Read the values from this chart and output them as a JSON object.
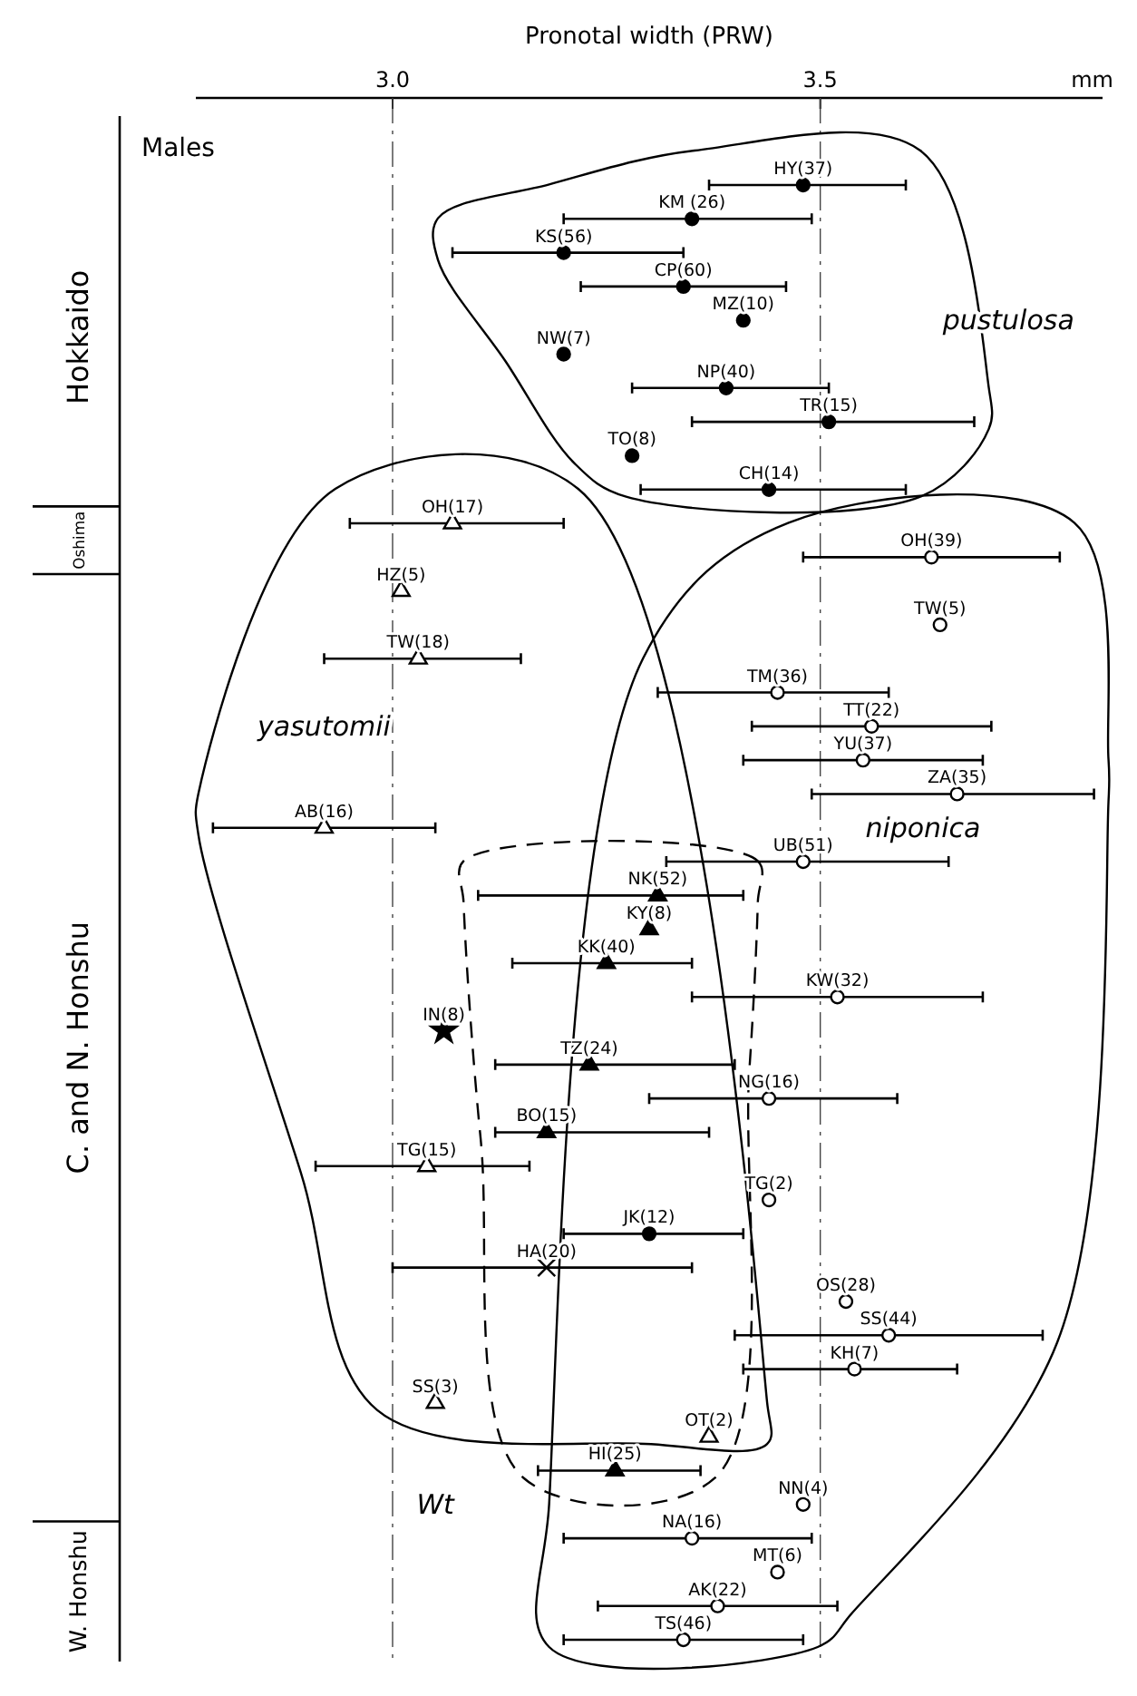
{
  "chart_data": {
    "type": "scatter",
    "orientation": "horizontal",
    "xlabel": "Pronotal width (PRW)",
    "categories": [
      "HY(37)",
      "KM (26)",
      "KS(56)",
      "CP(60)",
      "MZ(10)",
      "NW(7)",
      "NP(40)",
      "TR(15)",
      "TO(8)",
      "CH(14)",
      "OH(17)",
      "OH(39)",
      "HZ(5)",
      "TW(5)",
      "TW(18)",
      "TM(36)",
      "TT(22)",
      "YU(37)",
      "ZA(35)",
      "AB(16)",
      "UB(51)",
      "NK(52)",
      "KY(8)",
      "KK(40)",
      "KW(32)",
      "IN(8)",
      "TZ(24)",
      "NG(16)",
      "BO(15)",
      "TG(15)",
      "TG(2)",
      "JK(12)",
      "HA(20)",
      "OS(28)",
      "SS(44)",
      "KH(7)",
      "SS(3)",
      "OT(2)",
      "HI(25)",
      "NN(4)",
      "NA(16)",
      "MT(6)",
      "AK(22)",
      "TS(46)"
    ],
    "xlim": [
      2.77,
      3.83
    ],
    "xticks": [
      {
        "value": 3,
        "label": "3.0"
      },
      {
        "value": 3.5,
        "label": "3.5"
      }
    ],
    "grid": "x",
    "series": [
      {
        "color": "#000000",
        "marker": "circle",
        "values": [
          3.48,
          3.35,
          3.2,
          3.34,
          3.41,
          3.2,
          3.39,
          3.51,
          3.28,
          3.44,
          null,
          null,
          null,
          null,
          null,
          null,
          null,
          null,
          null,
          null,
          null,
          null,
          null,
          null,
          null,
          null,
          null,
          null,
          null,
          null,
          null,
          null,
          null,
          null,
          null,
          null,
          null,
          null,
          null,
          null,
          null,
          null,
          null,
          null
        ],
        "errors": [
          [
            3.37,
            3.6
          ],
          [
            3.2,
            3.49
          ],
          [
            3.07,
            3.34
          ],
          [
            3.22,
            3.46
          ],
          null,
          null,
          [
            3.28,
            3.51
          ],
          [
            3.35,
            3.68
          ],
          null,
          [
            3.29,
            3.6
          ],
          null,
          null,
          null,
          null,
          null,
          null,
          null,
          null,
          null,
          null,
          null,
          null,
          null,
          null,
          null,
          null,
          null,
          null,
          null,
          null,
          null,
          null,
          null,
          null,
          null,
          null,
          null,
          null,
          null,
          null,
          null,
          null,
          null,
          null
        ]
      },
      {
        "color": "#ffffff",
        "marker": "triangle",
        "values": [
          null,
          null,
          null,
          null,
          null,
          null,
          null,
          null,
          null,
          null,
          3.07,
          null,
          3.01,
          null,
          3.03,
          null,
          null,
          null,
          null,
          2.92,
          null,
          null,
          null,
          null,
          null,
          null,
          null,
          null,
          null,
          3.04,
          null,
          null,
          null,
          null,
          null,
          null,
          3.05,
          3.37,
          null,
          null,
          null,
          null,
          null,
          null
        ],
        "errors": [
          null,
          null,
          null,
          null,
          null,
          null,
          null,
          null,
          null,
          null,
          [
            2.95,
            3.2
          ],
          null,
          null,
          null,
          [
            2.92,
            3.15
          ],
          null,
          null,
          null,
          null,
          [
            2.79,
            3.05
          ],
          null,
          null,
          null,
          null,
          null,
          null,
          null,
          null,
          null,
          [
            2.91,
            3.16
          ],
          null,
          null,
          null,
          null,
          null,
          null,
          null,
          null,
          null,
          null,
          null,
          null,
          null,
          null
        ]
      },
      {
        "color": "#ffffff",
        "marker": "circle",
        "values": [
          null,
          null,
          null,
          null,
          null,
          null,
          null,
          null,
          null,
          null,
          null,
          3.63,
          null,
          3.64,
          null,
          3.45,
          3.56,
          3.55,
          3.66,
          null,
          3.48,
          null,
          null,
          null,
          3.52,
          null,
          null,
          3.44,
          null,
          null,
          3.44,
          null,
          null,
          3.53,
          3.58,
          3.54,
          null,
          null,
          null,
          3.48,
          3.35,
          3.45,
          3.38,
          3.34
        ],
        "errors": [
          null,
          null,
          null,
          null,
          null,
          null,
          null,
          null,
          null,
          null,
          null,
          [
            3.48,
            3.78
          ],
          null,
          null,
          null,
          [
            3.31,
            3.58
          ],
          [
            3.42,
            3.7
          ],
          [
            3.41,
            3.69
          ],
          [
            3.49,
            3.82
          ],
          null,
          [
            3.32,
            3.65
          ],
          null,
          null,
          null,
          [
            3.35,
            3.69
          ],
          null,
          null,
          [
            3.3,
            3.59
          ],
          null,
          null,
          null,
          null,
          null,
          null,
          [
            3.4,
            3.76
          ],
          [
            3.41,
            3.66
          ],
          null,
          null,
          null,
          null,
          [
            3.2,
            3.49
          ],
          null,
          [
            3.24,
            3.52
          ],
          [
            3.2,
            3.48
          ]
        ]
      },
      {
        "color": "#000000",
        "marker": "triangle",
        "line_style": "dashed",
        "values": [
          null,
          null,
          null,
          null,
          null,
          null,
          null,
          null,
          null,
          null,
          null,
          null,
          null,
          null,
          null,
          null,
          null,
          null,
          null,
          null,
          null,
          3.31,
          3.3,
          3.25,
          null,
          null,
          3.23,
          null,
          3.18,
          null,
          null,
          null,
          null,
          null,
          null,
          null,
          null,
          null,
          3.26,
          null,
          null,
          null,
          null,
          null
        ],
        "errors": [
          null,
          null,
          null,
          null,
          null,
          null,
          null,
          null,
          null,
          null,
          null,
          null,
          null,
          null,
          null,
          null,
          null,
          null,
          null,
          null,
          null,
          [
            3.1,
            3.41
          ],
          null,
          [
            3.14,
            3.35
          ],
          null,
          null,
          [
            3.12,
            3.4
          ],
          null,
          [
            3.12,
            3.37
          ],
          null,
          null,
          null,
          null,
          null,
          null,
          null,
          null,
          null,
          [
            3.17,
            3.36
          ],
          null,
          null,
          null,
          null,
          null
        ]
      },
      {
        "color": "#000000",
        "marker": "circle",
        "values": [
          null,
          null,
          null,
          null,
          null,
          null,
          null,
          null,
          null,
          null,
          null,
          null,
          null,
          null,
          null,
          null,
          null,
          null,
          null,
          null,
          null,
          null,
          null,
          null,
          null,
          null,
          null,
          null,
          null,
          null,
          null,
          3.3,
          null,
          null,
          null,
          null,
          null,
          null,
          null,
          null,
          null,
          null,
          null,
          null
        ],
        "errors": [
          null,
          null,
          null,
          null,
          null,
          null,
          null,
          null,
          null,
          null,
          null,
          null,
          null,
          null,
          null,
          null,
          null,
          null,
          null,
          null,
          null,
          null,
          null,
          null,
          null,
          null,
          null,
          null,
          null,
          null,
          null,
          [
            3.2,
            3.41
          ],
          null,
          null,
          null,
          null,
          null,
          null,
          null,
          null,
          null,
          null,
          null,
          null
        ]
      },
      {
        "color": "#000000",
        "marker": "cross",
        "values": [
          null,
          null,
          null,
          null,
          null,
          null,
          null,
          null,
          null,
          null,
          null,
          null,
          null,
          null,
          null,
          null,
          null,
          null,
          null,
          null,
          null,
          null,
          null,
          null,
          null,
          null,
          null,
          null,
          null,
          null,
          null,
          null,
          3.18,
          null,
          null,
          null,
          null,
          null,
          null,
          null,
          null,
          null,
          null,
          null
        ],
        "errors": [
          null,
          null,
          null,
          null,
          null,
          null,
          null,
          null,
          null,
          null,
          null,
          null,
          null,
          null,
          null,
          null,
          null,
          null,
          null,
          null,
          null,
          null,
          null,
          null,
          null,
          null,
          null,
          null,
          null,
          null,
          null,
          null,
          [
            3.0,
            3.35
          ],
          null,
          null,
          null,
          null,
          null,
          null,
          null,
          null,
          null,
          null,
          null
        ]
      },
      {
        "color": "#000000",
        "marker": "star",
        "values": [
          null,
          null,
          null,
          null,
          null,
          null,
          null,
          null,
          null,
          null,
          null,
          null,
          null,
          null,
          null,
          null,
          null,
          null,
          null,
          null,
          null,
          null,
          null,
          null,
          null,
          3.06,
          null,
          null,
          null,
          null,
          null,
          null,
          null,
          null,
          null,
          null,
          null,
          null,
          null,
          null,
          null,
          null,
          null,
          null
        ]
      }
    ],
    "annotations": [
      "Hokkaido",
      "Oshima",
      "C. and N. Honshu",
      "W. Honshu",
      "pustulosa",
      "yasutomii",
      "niponica",
      "Wt",
      "Males",
      "mm"
    ]
  }
}
